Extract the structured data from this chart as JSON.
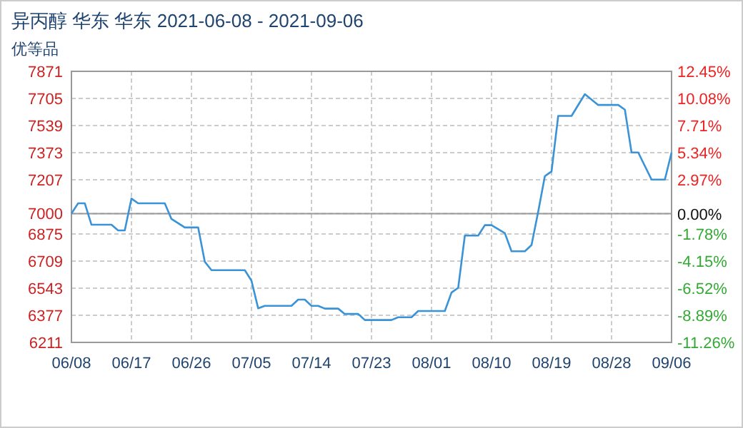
{
  "chart_data": {
    "type": "line",
    "title": "异丙醇 华东 华东 2021-06-08 - 2021-09-06",
    "subtitle": "优等品",
    "x": [
      "2021-06-08",
      "2021-06-09",
      "2021-06-10",
      "2021-06-11",
      "2021-06-14",
      "2021-06-15",
      "2021-06-16",
      "2021-06-17",
      "2021-06-18",
      "2021-06-22",
      "2021-06-23",
      "2021-06-25",
      "2021-06-27",
      "2021-06-28",
      "2021-06-29",
      "2021-07-04",
      "2021-07-05",
      "2021-07-06",
      "2021-07-07",
      "2021-07-11",
      "2021-07-12",
      "2021-07-13",
      "2021-07-14",
      "2021-07-15",
      "2021-07-16",
      "2021-07-18",
      "2021-07-19",
      "2021-07-21",
      "2021-07-22",
      "2021-07-26",
      "2021-07-27",
      "2021-07-29",
      "2021-07-30",
      "2021-08-03",
      "2021-08-04",
      "2021-08-05",
      "2021-08-06",
      "2021-08-08",
      "2021-08-09",
      "2021-08-10",
      "2021-08-12",
      "2021-08-13",
      "2021-08-15",
      "2021-08-16",
      "2021-08-17",
      "2021-08-18",
      "2021-08-19",
      "2021-08-20",
      "2021-08-22",
      "2021-08-24",
      "2021-08-26",
      "2021-08-29",
      "2021-08-30",
      "2021-08-31",
      "2021-09-01",
      "2021-09-03",
      "2021-09-05",
      "2021-09-06"
    ],
    "series": [
      {
        "color": "#3a93d6",
        "values": [
          7000,
          7063,
          7063,
          6932,
          6932,
          6897,
          6897,
          7092,
          7063,
          7063,
          6967,
          6915,
          6915,
          6705,
          6653,
          6653,
          6589,
          6420,
          6435,
          6435,
          6473,
          6473,
          6435,
          6435,
          6418,
          6418,
          6385,
          6385,
          6348,
          6348,
          6365,
          6365,
          6403,
          6403,
          6516,
          6545,
          6865,
          6865,
          6929,
          6929,
          6880,
          6769,
          6769,
          6807,
          7011,
          7229,
          7258,
          7598,
          7598,
          7731,
          7665,
          7665,
          7636,
          7374,
          7374,
          7208,
          7208,
          7374
        ]
      }
    ],
    "xlim": [
      "2021-06-08",
      "2021-09-06"
    ],
    "xticks": [
      {
        "value": "2021-06-08",
        "label": "06/08"
      },
      {
        "value": "2021-06-17",
        "label": "06/17"
      },
      {
        "value": "2021-06-26",
        "label": "06/26"
      },
      {
        "value": "2021-07-05",
        "label": "07/05"
      },
      {
        "value": "2021-07-14",
        "label": "07/14"
      },
      {
        "value": "2021-07-23",
        "label": "07/23"
      },
      {
        "value": "2021-08-01",
        "label": "08/01"
      },
      {
        "value": "2021-08-10",
        "label": "08/10"
      },
      {
        "value": "2021-08-19",
        "label": "08/19"
      },
      {
        "value": "2021-08-28",
        "label": "08/28"
      },
      {
        "value": "2021-09-06",
        "label": "09/06"
      }
    ],
    "ylim": [
      6211,
      7871
    ],
    "yticks": [
      6211,
      6377,
      6543,
      6709,
      6875,
      7000,
      7207,
      7373,
      7539,
      7705,
      7871
    ],
    "y2lim": [
      -11.26,
      12.45
    ],
    "y2ticks": [
      {
        "value": -11.26,
        "label": "-11.26%"
      },
      {
        "value": -8.89,
        "label": "-8.89%"
      },
      {
        "value": -6.52,
        "label": "-6.52%"
      },
      {
        "value": -4.15,
        "label": "-4.15%"
      },
      {
        "value": -1.78,
        "label": "-1.78%"
      },
      {
        "value": 0,
        "label": "0.00%"
      },
      {
        "value": 2.97,
        "label": "2.97%"
      },
      {
        "value": 5.34,
        "label": "5.34%"
      },
      {
        "value": 7.71,
        "label": "7.71%"
      },
      {
        "value": 10.08,
        "label": "10.08%"
      },
      {
        "value": 12.45,
        "label": "12.45%"
      }
    ],
    "ref_lines": [
      {
        "axis": "y",
        "value": 7000,
        "color": "#999999"
      }
    ],
    "grid": true,
    "marker": "none",
    "line_style": "solid"
  }
}
